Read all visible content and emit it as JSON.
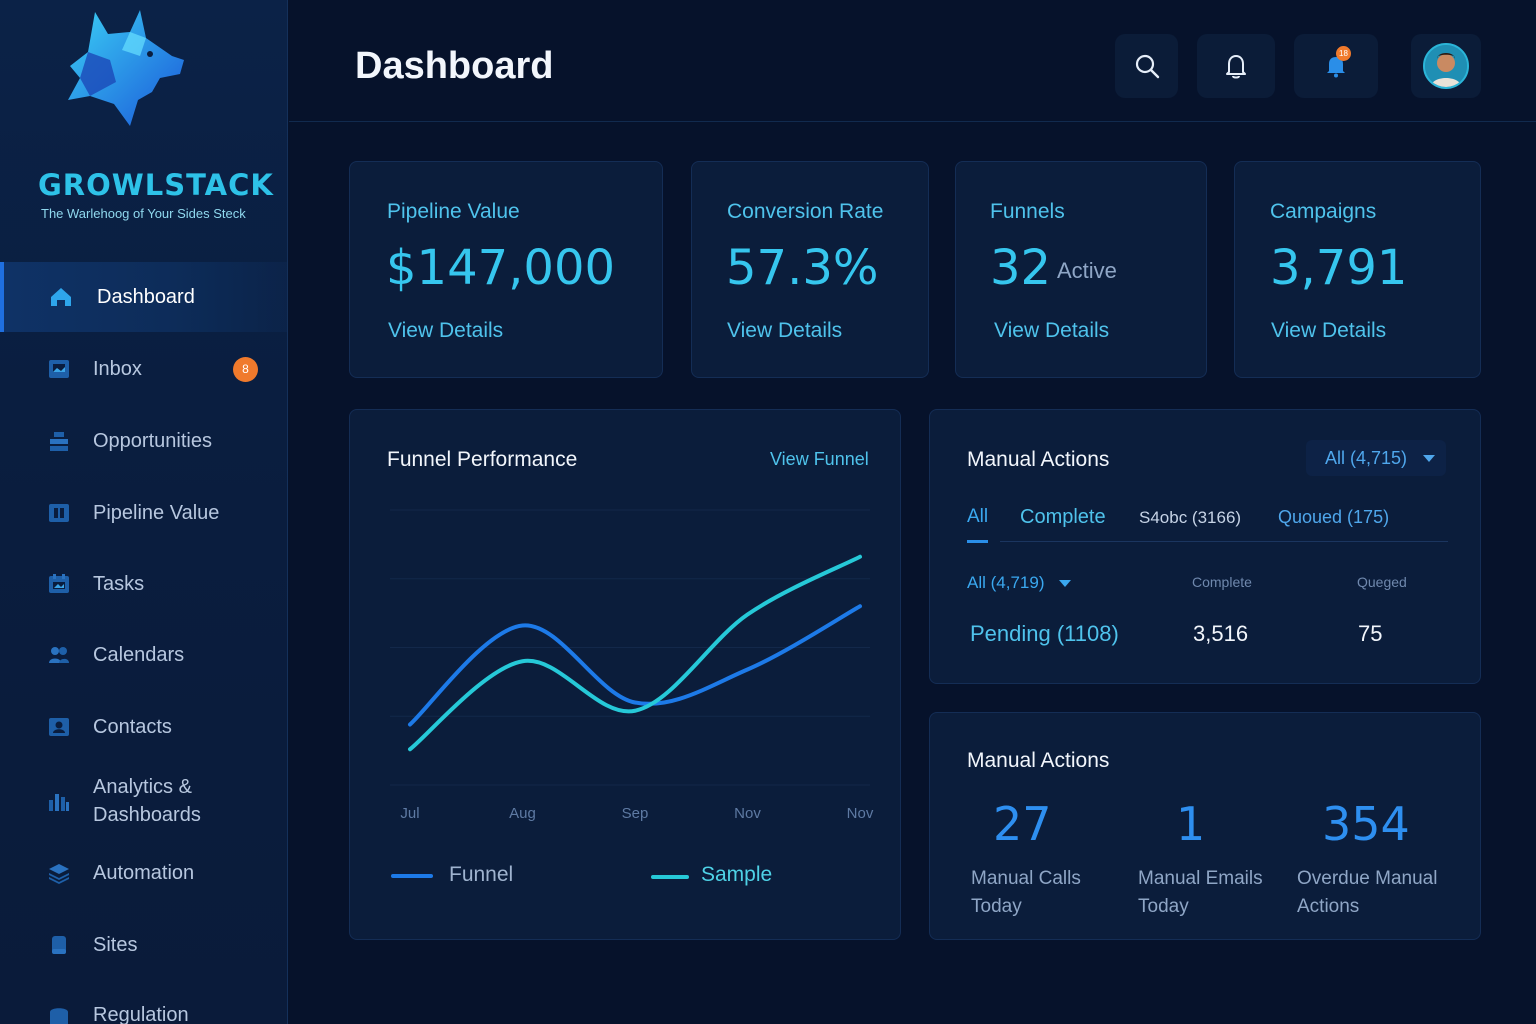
{
  "brand": {
    "name": "GROWLSTACK",
    "tagline": "The Warlehoog of Your Sides Steck"
  },
  "sidebar": {
    "items": [
      {
        "label": "Dashboard",
        "icon": "home-icon",
        "active": true
      },
      {
        "label": "Inbox",
        "icon": "inbox-icon",
        "badge": "8"
      },
      {
        "label": "Opportunities",
        "icon": "opportunities-icon"
      },
      {
        "label": "Pipeline Value",
        "icon": "pipeline-icon"
      },
      {
        "label": "Tasks",
        "icon": "tasks-icon"
      },
      {
        "label": "Calendars",
        "icon": "users-icon"
      },
      {
        "label": "Contacts",
        "icon": "contacts-icon"
      },
      {
        "label": "Analytics &",
        "label2": "Dashboards",
        "icon": "bar-chart-icon"
      },
      {
        "label": "Automation",
        "icon": "layers-icon"
      },
      {
        "label": "Sites",
        "icon": "sites-icon"
      },
      {
        "label": "Regulation",
        "icon": "regulation-icon"
      }
    ]
  },
  "header": {
    "title": "Dashboard",
    "notification_badge": "18",
    "icons": [
      "search-icon",
      "bell-icon",
      "notification-bell-icon",
      "avatar"
    ]
  },
  "stats": [
    {
      "label": "Pipeline Value",
      "value": "$147,000",
      "sub": "",
      "link": "View Details"
    },
    {
      "label": "Conversion Rate",
      "value": "57.3%",
      "sub": "",
      "link": "View Details"
    },
    {
      "label": "Funnels",
      "value": "32",
      "sub": "Active",
      "link": "View Details"
    },
    {
      "label": "Campaigns",
      "value": "3,791",
      "sub": "",
      "link": "View Details"
    }
  ],
  "funnel_panel": {
    "title": "Funnel Performance",
    "link": "View Funnel",
    "legend": [
      "Funnel",
      "Sample"
    ]
  },
  "chart_data": {
    "type": "line",
    "categories": [
      "Jul",
      "Aug",
      "Sep",
      "Nov",
      "Nov"
    ],
    "series": [
      {
        "name": "Funnel",
        "values": [
          22,
          58,
          30,
          42,
          65
        ],
        "color": "#1d7ae8"
      },
      {
        "name": "Sample",
        "values": [
          13,
          45,
          27,
          62,
          83
        ],
        "color": "#26c9d8"
      }
    ],
    "ylim": [
      0,
      100
    ],
    "grid": true,
    "legend": "bottom"
  },
  "manual_actions_1": {
    "title": "Manual Actions",
    "filter": "All (4,715)",
    "tabs": [
      "All",
      "Complete",
      "S4obc (3166)",
      "Quoued (175)"
    ],
    "sub_filter": "All (4,719)",
    "col_headers": [
      "Complete",
      "Queged"
    ],
    "row": {
      "label": "Pending (1108)",
      "complete": "3,516",
      "queued": "75"
    }
  },
  "manual_actions_2": {
    "title": "Manual Actions",
    "metrics": [
      {
        "value": "27",
        "label1": "Manual Calls",
        "label2": "Today"
      },
      {
        "value": "1",
        "label1": "Manual Emails",
        "label2": "Today"
      },
      {
        "value": "354",
        "label1": "Overdue Manual",
        "label2": "Actions"
      }
    ]
  },
  "colors": {
    "accent": "#36c6ee",
    "primary_blue": "#1d7ae8",
    "badge": "#f07a2c",
    "background": "#06122b"
  }
}
